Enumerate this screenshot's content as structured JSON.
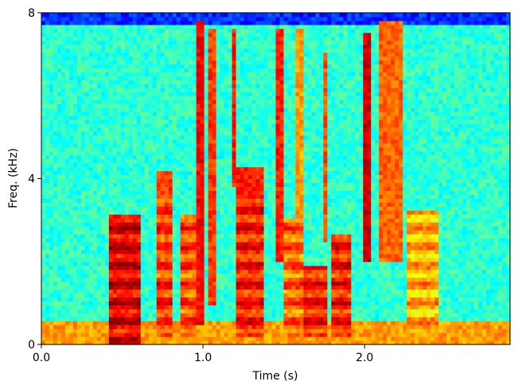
{
  "chart_data": {
    "type": "heatmap",
    "subtype": "spectrogram",
    "colormap": "jet",
    "title": "",
    "xlabel": "Time (s)",
    "ylabel": "Freq. (kHz)",
    "xlim": [
      0.0,
      2.9
    ],
    "ylim": [
      0,
      8
    ],
    "x_ticks": [
      0.0,
      1.0,
      2.0
    ],
    "x_tick_labels": [
      "0.0",
      "1.0",
      "2.0"
    ],
    "y_ticks": [
      0,
      4,
      8
    ],
    "y_tick_labels": [
      "0",
      "4",
      "8"
    ],
    "grid": false,
    "legend": "none",
    "energy_scale": "normalized intensity 0 (blue) to 1 (red)",
    "background_level": 0.42,
    "events": [
      {
        "kind": "low-band",
        "t_start": 0.0,
        "t_end": 2.9,
        "f_low": 0.0,
        "f_high": 0.55,
        "level": 0.72
      },
      {
        "kind": "voiced",
        "t_start": 0.42,
        "t_end": 0.62,
        "f_low": 0.0,
        "f_high": 3.1,
        "level": 0.9
      },
      {
        "kind": "voiced",
        "t_start": 0.72,
        "t_end": 0.82,
        "f_low": 0.2,
        "f_high": 4.2,
        "level": 0.82
      },
      {
        "kind": "voiced",
        "t_start": 0.85,
        "t_end": 0.95,
        "f_low": 0.2,
        "f_high": 3.1,
        "level": 0.8
      },
      {
        "kind": "voiced",
        "t_start": 1.2,
        "t_end": 1.38,
        "f_low": 0.2,
        "f_high": 4.3,
        "level": 0.85
      },
      {
        "kind": "voiced",
        "t_start": 1.5,
        "t_end": 1.62,
        "f_low": 0.2,
        "f_high": 3.0,
        "level": 0.78
      },
      {
        "kind": "voiced",
        "t_start": 1.62,
        "t_end": 1.78,
        "f_low": 0.2,
        "f_high": 1.9,
        "level": 0.85
      },
      {
        "kind": "voiced",
        "t_start": 1.8,
        "t_end": 1.92,
        "f_low": 0.2,
        "f_high": 2.7,
        "level": 0.85
      },
      {
        "kind": "fricative",
        "t_start": 2.08,
        "t_end": 2.24,
        "f_low": 2.0,
        "f_high": 7.8,
        "level": 0.78
      },
      {
        "kind": "voiced",
        "t_start": 2.25,
        "t_end": 2.45,
        "f_low": 0.2,
        "f_high": 3.2,
        "level": 0.7
      },
      {
        "kind": "burst",
        "t_start": 0.96,
        "t_end": 1.0,
        "f_low": 0.5,
        "f_high": 7.8,
        "level": 0.88
      },
      {
        "kind": "burst",
        "t_start": 1.04,
        "t_end": 1.07,
        "f_low": 1.0,
        "f_high": 7.6,
        "level": 0.82
      },
      {
        "kind": "burst",
        "t_start": 1.17,
        "t_end": 1.2,
        "f_low": 3.8,
        "f_high": 7.6,
        "level": 0.85
      },
      {
        "kind": "burst",
        "t_start": 1.46,
        "t_end": 1.49,
        "f_low": 2.0,
        "f_high": 7.6,
        "level": 0.85
      },
      {
        "kind": "burst",
        "t_start": 1.57,
        "t_end": 1.62,
        "f_low": 3.0,
        "f_high": 7.6,
        "level": 0.72
      },
      {
        "kind": "burst",
        "t_start": 1.75,
        "t_end": 1.78,
        "f_low": 2.5,
        "f_high": 7.0,
        "level": 0.8
      },
      {
        "kind": "burst",
        "t_start": 2.0,
        "t_end": 2.04,
        "f_low": 2.0,
        "f_high": 7.5,
        "level": 0.92
      }
    ]
  }
}
